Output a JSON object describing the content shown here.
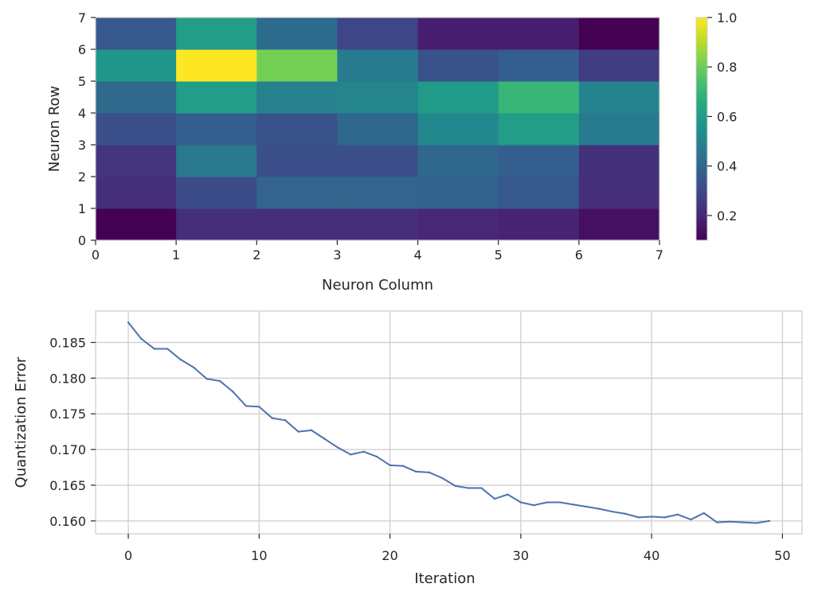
{
  "chart_data": [
    {
      "type": "heatmap",
      "xlabel": "Neuron Column",
      "ylabel": "Neuron Row",
      "xlim": [
        0,
        7
      ],
      "ylim": [
        0,
        7
      ],
      "xticks": [
        "0",
        "1",
        "2",
        "3",
        "4",
        "5",
        "6",
        "7"
      ],
      "yticks": [
        "0",
        "1",
        "2",
        "3",
        "4",
        "5",
        "6",
        "7"
      ],
      "colormap": "viridis",
      "colorbar": {
        "range": [
          0.1,
          1.0
        ],
        "ticks": [
          0.2,
          0.4,
          0.6,
          0.8,
          1.0
        ],
        "tick_labels": [
          "0.2",
          "0.4",
          "0.6",
          "0.8",
          "1.0"
        ]
      },
      "rows_bottom_to_top": [
        [
          0.1,
          0.22,
          0.22,
          0.22,
          0.2,
          0.19,
          0.14
        ],
        [
          0.22,
          0.31,
          0.39,
          0.39,
          0.38,
          0.35,
          0.22
        ],
        [
          0.24,
          0.46,
          0.32,
          0.32,
          0.4,
          0.37,
          0.23
        ],
        [
          0.32,
          0.37,
          0.33,
          0.4,
          0.52,
          0.6,
          0.47
        ],
        [
          0.41,
          0.6,
          0.49,
          0.51,
          0.59,
          0.7,
          0.5
        ],
        [
          0.57,
          1.0,
          0.81,
          0.47,
          0.33,
          0.37,
          0.26
        ],
        [
          0.35,
          0.6,
          0.42,
          0.29,
          0.18,
          0.18,
          0.1
        ]
      ]
    },
    {
      "type": "line",
      "xlabel": "Iteration",
      "ylabel": "Quantization Error",
      "xlim": [
        -2.5,
        51.5
      ],
      "ylim": [
        0.1582,
        0.1894
      ],
      "xticks": [
        "0",
        "10",
        "20",
        "30",
        "40",
        "50"
      ],
      "yticks": [
        "0.160",
        "0.165",
        "0.170",
        "0.175",
        "0.180",
        "0.185"
      ],
      "grid": true,
      "series": [
        {
          "color": "#4c72b0",
          "x": [
            0,
            1,
            2,
            3,
            4,
            5,
            6,
            7,
            8,
            9,
            10,
            11,
            12,
            13,
            14,
            15,
            16,
            17,
            18,
            19,
            20,
            21,
            22,
            23,
            24,
            25,
            26,
            27,
            28,
            29,
            30,
            31,
            32,
            33,
            34,
            35,
            36,
            37,
            38,
            39,
            40,
            41,
            42,
            43,
            44,
            45,
            46,
            47,
            48,
            49
          ],
          "values": [
            0.1878,
            0.1855,
            0.1841,
            0.1841,
            0.1826,
            0.1815,
            0.1799,
            0.1796,
            0.1781,
            0.1761,
            0.176,
            0.1744,
            0.1741,
            0.1725,
            0.1727,
            0.1715,
            0.1703,
            0.1693,
            0.1697,
            0.169,
            0.1678,
            0.1677,
            0.1669,
            0.1668,
            0.166,
            0.1649,
            0.1646,
            0.1646,
            0.1631,
            0.1637,
            0.1626,
            0.1622,
            0.1626,
            0.1626,
            0.1623,
            0.162,
            0.1617,
            0.1613,
            0.161,
            0.1605,
            0.1606,
            0.1605,
            0.1609,
            0.1602,
            0.1611,
            0.1598,
            0.1599,
            0.1598,
            0.1597,
            0.16
          ]
        }
      ]
    }
  ]
}
